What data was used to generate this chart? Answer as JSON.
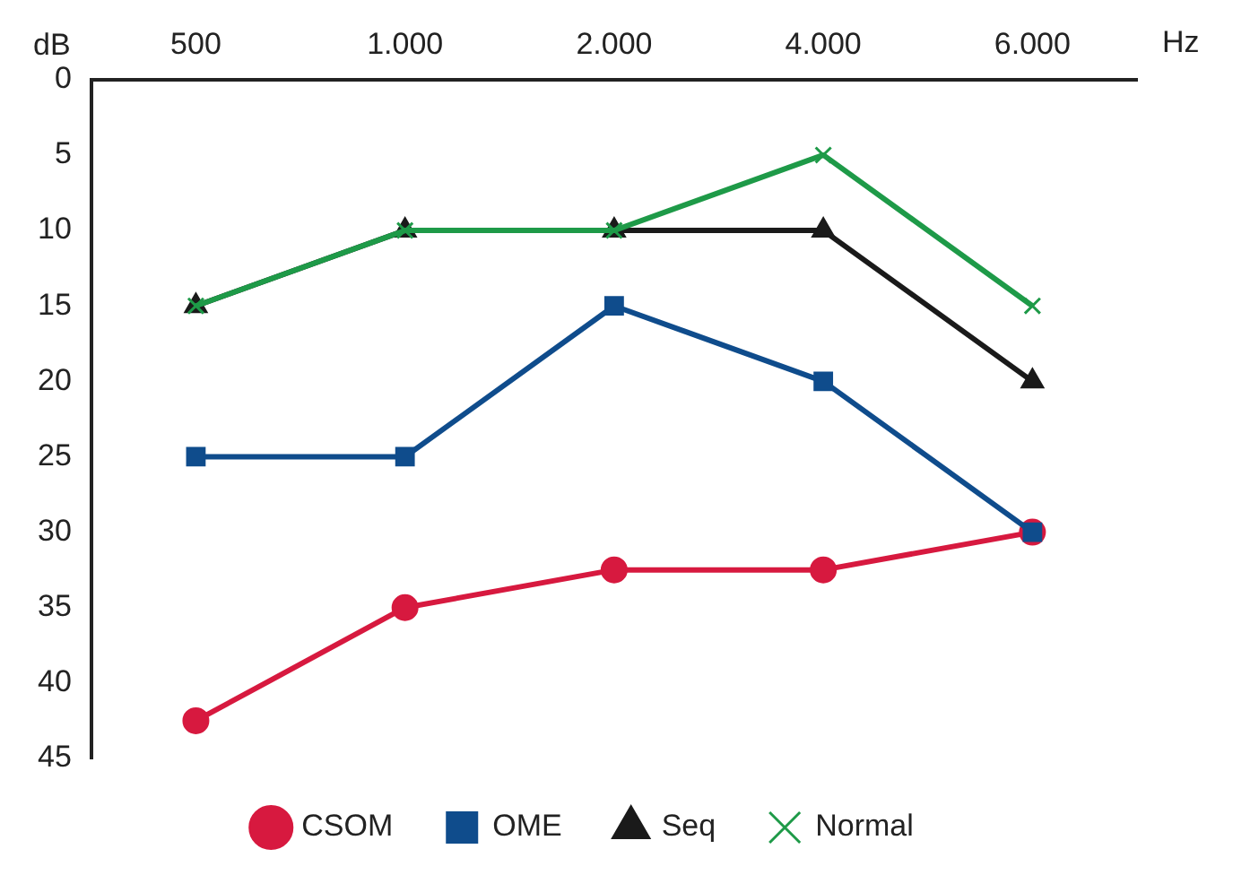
{
  "chart_data": {
    "type": "line",
    "xlabel": "Hz",
    "ylabel": "dB",
    "categories": [
      "500",
      "1.000",
      "2.000",
      "4.000",
      "6.000"
    ],
    "series": [
      {
        "name": "CSOM",
        "color": "#d7193f",
        "marker": "circle",
        "values": [
          42.5,
          35,
          32.5,
          32.5,
          30
        ]
      },
      {
        "name": "OME",
        "color": "#0f4c8c",
        "marker": "square",
        "values": [
          25,
          25,
          15,
          20,
          30
        ]
      },
      {
        "name": "Seq",
        "color": "#1a1a1a",
        "marker": "triangle",
        "values": [
          15,
          10,
          10,
          10,
          20
        ]
      },
      {
        "name": "Normal",
        "color": "#1e9a48",
        "marker": "cross",
        "values": [
          15,
          10,
          10,
          5,
          15
        ]
      }
    ],
    "ylim": [
      45,
      0
    ],
    "yticks": [
      0,
      5,
      10,
      15,
      20,
      25,
      30,
      35,
      40,
      45
    ],
    "grid": false,
    "legend": "bottom",
    "line_style": "solid"
  }
}
